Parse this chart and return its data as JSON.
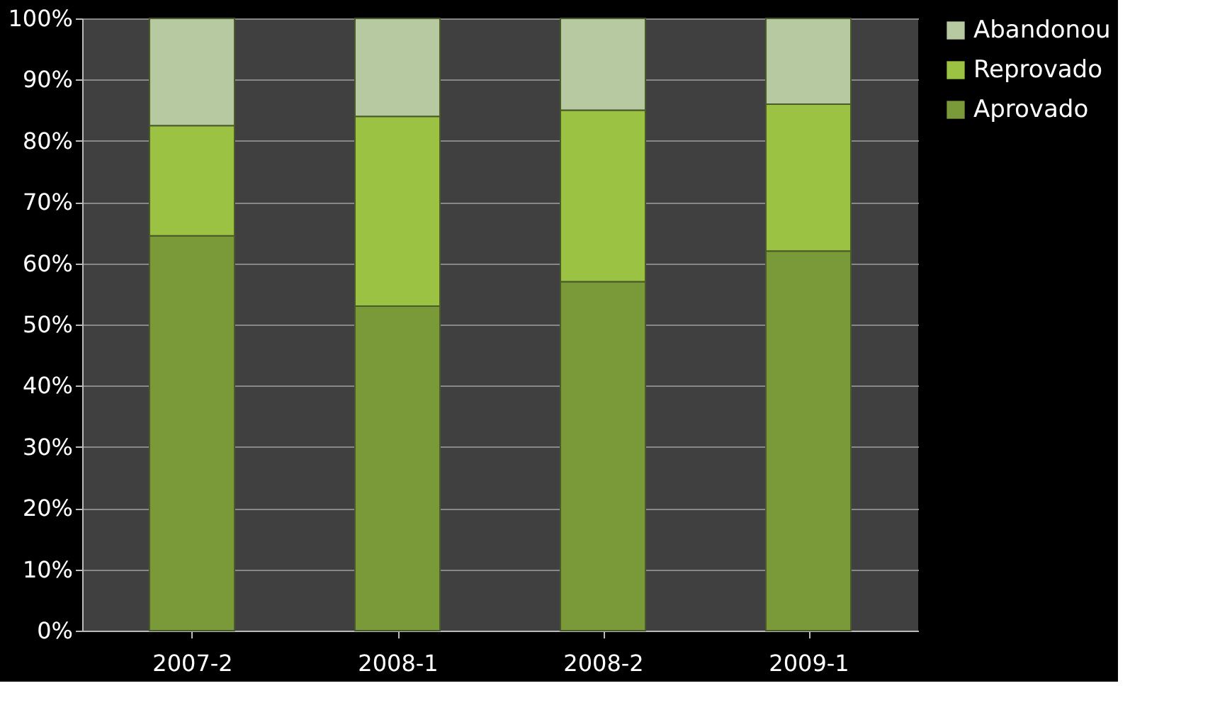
{
  "chart_data": {
    "type": "bar",
    "stacked": true,
    "categories": [
      "2007-2",
      "2008-1",
      "2008-2",
      "2009-1"
    ],
    "series": [
      {
        "name": "Aprovado",
        "color": "#7a9a3a",
        "values": [
          64.5,
          53,
          57,
          62
        ]
      },
      {
        "name": "Reprovado",
        "color": "#9bc243",
        "values": [
          18,
          31,
          28,
          24
        ]
      },
      {
        "name": "Abandonou",
        "color": "#b6c9a0",
        "values": [
          17.5,
          16,
          15,
          14
        ]
      }
    ],
    "ylim": [
      0,
      100
    ],
    "yticks": [
      {
        "value": 0,
        "label": "0%"
      },
      {
        "value": 10,
        "label": "10%"
      },
      {
        "value": 20,
        "label": "20%"
      },
      {
        "value": 30,
        "label": "30%"
      },
      {
        "value": 40,
        "label": "40%"
      },
      {
        "value": 50,
        "label": "50%"
      },
      {
        "value": 60,
        "label": "60%"
      },
      {
        "value": 70,
        "label": "70%"
      },
      {
        "value": 80,
        "label": "80%"
      },
      {
        "value": 90,
        "label": "90%"
      },
      {
        "value": 100,
        "label": "100%"
      }
    ],
    "grid": "y",
    "legend": "right"
  }
}
